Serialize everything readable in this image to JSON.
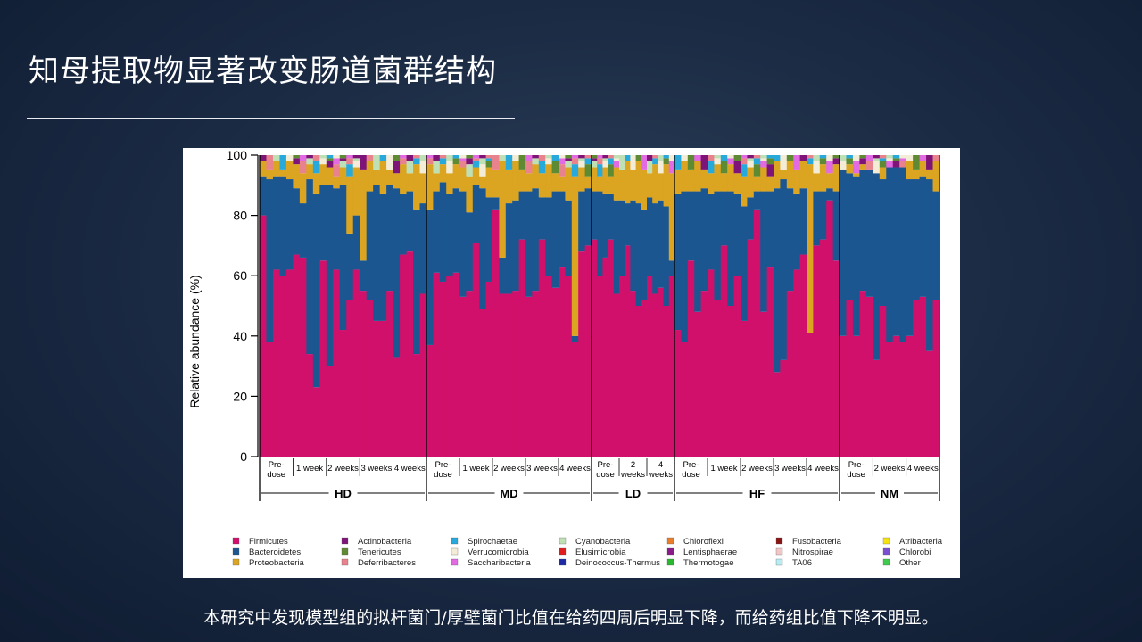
{
  "slide": {
    "title": "知母提取物显著改变肠道菌群结构",
    "caption": "本研究中发现模型组的拟杆菌门/厚壁菌门比值在给药四周后明显下降，而给药组比值下降不明显。"
  },
  "chart_data": {
    "type": "bar",
    "subtype": "stacked-100-percent",
    "title": "",
    "xlabel": "",
    "ylabel": "Relative abundance (%)",
    "ylim": [
      0,
      100
    ],
    "yticks": [
      0,
      20,
      40,
      60,
      80,
      100
    ],
    "legend_position": "bottom",
    "legend_columns": 7,
    "groups": [
      {
        "name": "HD",
        "timepoints": [
          {
            "label": "Pre-\ndose",
            "firmicutes": [
              80,
              38,
              62,
              60,
              62
            ],
            "bacteroidetes": [
              13,
              54,
              31,
              33,
              30
            ]
          },
          {
            "label": "1 week",
            "firmicutes": [
              67,
              66,
              34,
              23,
              65
            ],
            "bacteroidetes": [
              22,
              18,
              58,
              64,
              25
            ]
          },
          {
            "label": "2 weeks",
            "firmicutes": [
              30,
              62,
              42,
              52,
              62
            ],
            "bacteroidetes": [
              60,
              27,
              48,
              22,
              18
            ]
          },
          {
            "label": "3 weeks",
            "firmicutes": [
              55,
              52,
              45,
              45,
              55
            ],
            "bacteroidetes": [
              10,
              36,
              45,
              42,
              35
            ]
          },
          {
            "label": "4 weeks",
            "firmicutes": [
              33,
              67,
              68,
              34,
              54
            ],
            "bacteroidetes": [
              56,
              20,
              20,
              48,
              30
            ]
          }
        ]
      },
      {
        "name": "MD",
        "timepoints": [
          {
            "label": "Pre-\ndose",
            "firmicutes": [
              37,
              61,
              58,
              60,
              61
            ],
            "bacteroidetes": [
              45,
              27,
              33,
              27,
              28
            ]
          },
          {
            "label": "1 week",
            "firmicutes": [
              53,
              55,
              71,
              49,
              58
            ],
            "bacteroidetes": [
              35,
              26,
              19,
              40,
              28
            ]
          },
          {
            "label": "2 weeks",
            "firmicutes": [
              82,
              54,
              54,
              55,
              72
            ],
            "bacteroidetes": [
              4,
              12,
              30,
              30,
              16
            ]
          },
          {
            "label": "3 weeks",
            "firmicutes": [
              53,
              55,
              72,
              60,
              56
            ],
            "bacteroidetes": [
              35,
              34,
              14,
              26,
              32
            ]
          },
          {
            "label": "4 weeks",
            "firmicutes": [
              63,
              60,
              38,
              68,
              70
            ],
            "bacteroidetes": [
              25,
              25,
              2,
              20,
              19
            ]
          }
        ]
      },
      {
        "name": "LD",
        "timepoints": [
          {
            "label": "Pre-\ndose",
            "firmicutes": [
              72,
              60,
              66,
              72,
              54
            ],
            "bacteroidetes": [
              16,
              28,
              21,
              15,
              31
            ]
          },
          {
            "label": "2\nweeks",
            "firmicutes": [
              60,
              70,
              55,
              50,
              52
            ],
            "bacteroidetes": [
              25,
              14,
              30,
              34,
              30
            ]
          },
          {
            "label": "4\nweeks",
            "firmicutes": [
              60,
              54,
              56,
              50,
              60
            ],
            "bacteroidetes": [
              26,
              30,
              29,
              33,
              5
            ]
          }
        ]
      },
      {
        "name": "HF",
        "timepoints": [
          {
            "label": "Pre-\ndose",
            "firmicutes": [
              42,
              38,
              65,
              48,
              55
            ],
            "bacteroidetes": [
              45,
              50,
              23,
              40,
              34
            ]
          },
          {
            "label": "1 week",
            "firmicutes": [
              62,
              52,
              70,
              50,
              60
            ],
            "bacteroidetes": [
              25,
              36,
              18,
              38,
              27
            ]
          },
          {
            "label": "2 weeks",
            "firmicutes": [
              45,
              72,
              82,
              48,
              63
            ],
            "bacteroidetes": [
              38,
              14,
              6,
              40,
              25
            ]
          },
          {
            "label": "3 weeks",
            "firmicutes": [
              28,
              32,
              55,
              62,
              67
            ],
            "bacteroidetes": [
              61,
              60,
              34,
              25,
              22
            ]
          },
          {
            "label": "4 weeks",
            "firmicutes": [
              41,
              70,
              72,
              85,
              65
            ],
            "bacteroidetes": [
              0,
              18,
              16,
              4,
              23
            ]
          }
        ]
      },
      {
        "name": "NM",
        "timepoints": [
          {
            "label": "Pre-\ndose",
            "firmicutes": [
              40,
              52,
              40,
              55,
              53
            ],
            "bacteroidetes": [
              55,
              42,
              53,
              40,
              42
            ]
          },
          {
            "label": "2 weeks",
            "firmicutes": [
              32,
              50,
              38,
              40,
              38
            ],
            "bacteroidetes": [
              62,
              42,
              58,
              56,
              58
            ]
          },
          {
            "label": "4 weeks",
            "firmicutes": [
              40,
              52,
              53,
              35,
              52
            ],
            "bacteroidetes": [
              52,
              40,
              40,
              57,
              36
            ]
          }
        ]
      }
    ],
    "legend": [
      {
        "name": "Firmicutes",
        "color": "#d1106b"
      },
      {
        "name": "Bacteroidetes",
        "color": "#1b5690"
      },
      {
        "name": "Proteobacteria",
        "color": "#dba521"
      },
      {
        "name": "Actinobacteria",
        "color": "#7e1478"
      },
      {
        "name": "Tenericutes",
        "color": "#5e8a33"
      },
      {
        "name": "Deferribacteres",
        "color": "#e8828c"
      },
      {
        "name": "Spirochaetae",
        "color": "#27a9dc"
      },
      {
        "name": "Verrucomicrobia",
        "color": "#f3ecd6"
      },
      {
        "name": "Saccharibacteria",
        "color": "#e26ae3"
      },
      {
        "name": "Cyanobacteria",
        "color": "#bfe0b5"
      },
      {
        "name": "Elusimicrobia",
        "color": "#e01c1c"
      },
      {
        "name": "Deinococcus-Thermus",
        "color": "#1e29a6"
      },
      {
        "name": "Chloroflexi",
        "color": "#e87e2c"
      },
      {
        "name": "Lentisphaerae",
        "color": "#8a1a8a"
      },
      {
        "name": "Thermotogae",
        "color": "#27b82f"
      },
      {
        "name": "Fusobacteria",
        "color": "#8a1414"
      },
      {
        "name": "Nitrospirae",
        "color": "#f3c6c6"
      },
      {
        "name": "TA06",
        "color": "#b7ecf3"
      },
      {
        "name": "Atribacteria",
        "color": "#f4e30f"
      },
      {
        "name": "Chlorobi",
        "color": "#7a4fd3"
      },
      {
        "name": "Other",
        "color": "#3ecb4e"
      }
    ]
  }
}
